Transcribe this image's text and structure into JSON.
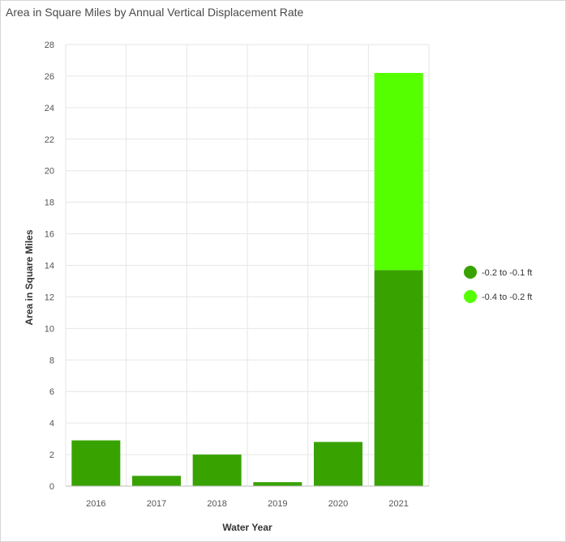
{
  "chart_data": {
    "type": "bar",
    "stacked": true,
    "title": "Area in Square Miles by Annual Vertical Displacement Rate",
    "xlabel": "Water Year",
    "ylabel": "Area in Square Miles",
    "ylim": [
      0,
      28
    ],
    "yticks": [
      0,
      2,
      4,
      6,
      8,
      10,
      12,
      14,
      16,
      18,
      20,
      22,
      24,
      26,
      28
    ],
    "categories": [
      "2016",
      "2017",
      "2018",
      "2019",
      "2020",
      "2021"
    ],
    "series": [
      {
        "name": "-0.2 to -0.1 ft",
        "color": "#38a300",
        "values": [
          2.9,
          0.65,
          2.0,
          0.25,
          2.8,
          13.7
        ]
      },
      {
        "name": "-0.4 to -0.2 ft",
        "color": "#55ff00",
        "values": [
          0,
          0,
          0,
          0,
          0,
          12.5
        ]
      }
    ],
    "grid": true,
    "legend_position": "right"
  }
}
